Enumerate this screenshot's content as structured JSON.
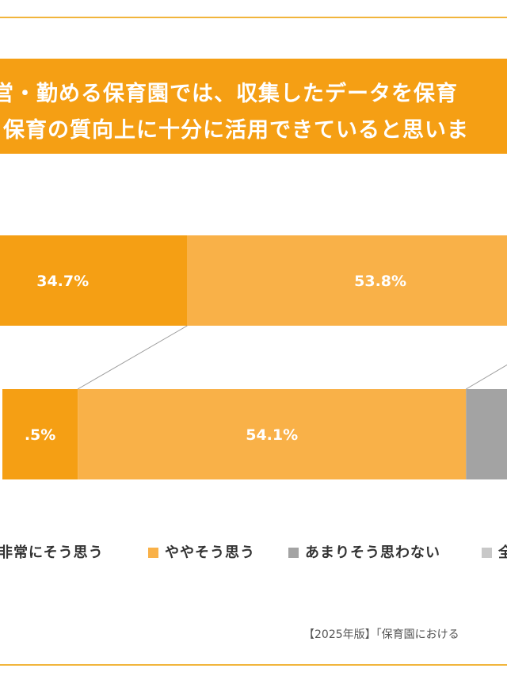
{
  "title": {
    "line1": "営・勤める保育園では、収集したデータを保育",
    "line2": "保育の質向上に十分に活用できていると思いま"
  },
  "colors": {
    "very_agree": "#f59f14",
    "somewhat_agree": "#f9b148",
    "not_much": "#a3a3a3",
    "not_at_all": "#c8c8c8",
    "frame": "#f1b53c",
    "banner": "#f59f14",
    "connector": "#9a9a9a"
  },
  "chart_data": {
    "type": "bar",
    "orientation": "horizontal",
    "stacked": true,
    "categories": [
      "",
      ""
    ],
    "series": [
      {
        "name": "非常にそう思う",
        "values": [
          34.7,
          10.5
        ],
        "labels": [
          "34.7%",
          ".5%"
        ]
      },
      {
        "name": "ややそう思う",
        "values": [
          53.8,
          54.1
        ],
        "labels": [
          "53.8%",
          "54.1%"
        ]
      },
      {
        "name": "あまりそう思わない",
        "values": [
          null,
          null
        ],
        "labels": [
          "",
          ""
        ]
      },
      {
        "name": "全",
        "values": [
          null,
          null
        ],
        "labels": [
          "",
          ""
        ]
      }
    ],
    "xlim": [
      0,
      100
    ],
    "grid": false,
    "legend_position": "bottom"
  },
  "legend": [
    {
      "label": "非常にそう思う"
    },
    {
      "label": "ややそう思う"
    },
    {
      "label": "あまりそう思わない"
    },
    {
      "label": "全"
    }
  ],
  "source_text": "【2025年版】「保育園における"
}
